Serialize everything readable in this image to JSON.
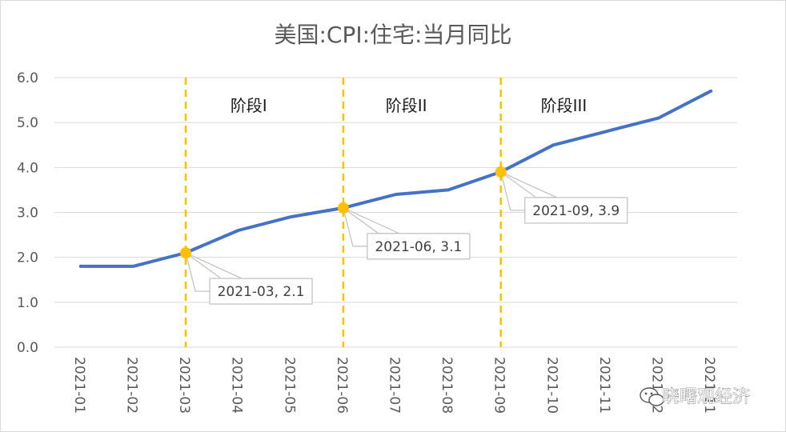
{
  "chart_data": {
    "type": "line",
    "title": "美国:CPI:住宅:当月同比",
    "categories": [
      "2021-01",
      "2021-02",
      "2021-03",
      "2021-04",
      "2021-05",
      "2021-06",
      "2021-07",
      "2021-08",
      "2021-09",
      "2021-10",
      "2021-11",
      "2021-12",
      "2021-11"
    ],
    "y_ticks": [
      "0.0",
      "1.0",
      "2.0",
      "3.0",
      "4.0",
      "5.0",
      "6.0"
    ],
    "ylim": [
      0,
      6
    ],
    "grid": "horizontal",
    "series": [
      {
        "values": [
          1.8,
          1.8,
          2.1,
          2.6,
          2.9,
          3.1,
          3.4,
          3.5,
          3.9,
          4.5,
          4.8,
          5.1,
          5.7
        ],
        "color": "#4472c4"
      }
    ],
    "phase_lines": [
      {
        "index": 2,
        "color": "#ffc000"
      },
      {
        "index": 5,
        "color": "#ffc000"
      },
      {
        "index": 8,
        "color": "#ffc000"
      }
    ],
    "phase_labels": [
      {
        "text": "阶段I",
        "x": 3.2
      },
      {
        "text": "阶段II",
        "x": 6.2
      },
      {
        "text": "阶段III",
        "x": 9.2
      }
    ],
    "callouts": [
      {
        "index": 2,
        "text": "2021-03, 2.1"
      },
      {
        "index": 5,
        "text": "2021-06, 3.1"
      },
      {
        "index": 8,
        "text": "2021-09, 3.9"
      }
    ]
  },
  "watermark": {
    "icon": "wechat-icon",
    "text": "晓曙观经济"
  }
}
